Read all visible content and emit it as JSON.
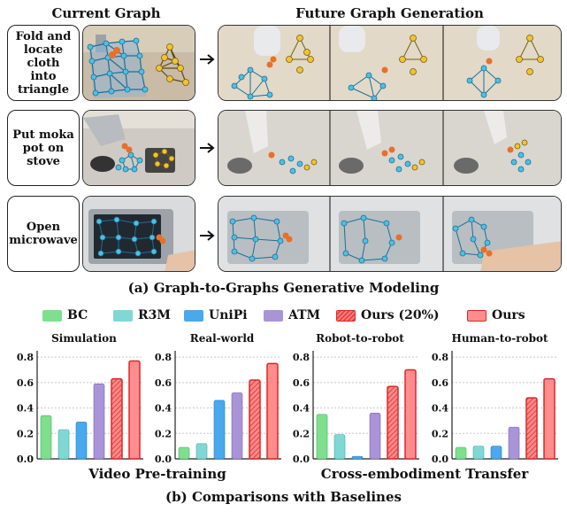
{
  "headers": {
    "current": "Current Graph",
    "future": "Future Graph Generation"
  },
  "tasks": [
    {
      "lines": [
        "Fold and",
        "locate cloth",
        "into",
        "triangle"
      ]
    },
    {
      "lines": [
        "Put moka",
        "pot on",
        "stove"
      ]
    },
    {
      "lines": [
        "Open",
        "microwave"
      ]
    }
  ],
  "caption_a": "(a) Graph-to-Graphs Generative Modeling",
  "legend": [
    {
      "label": "BC",
      "color": "#7ee08e",
      "hatched": false
    },
    {
      "label": "R3M",
      "color": "#7fd8d4",
      "hatched": false
    },
    {
      "label": "UniPi",
      "color": "#4aa8ec",
      "hatched": false
    },
    {
      "label": "ATM",
      "color": "#a994d8",
      "hatched": false
    },
    {
      "label": "Ours (20%)",
      "color": "#ff8080",
      "hatched": true
    },
    {
      "label": "Ours",
      "color": "#ff7b7b",
      "hatched": false
    }
  ],
  "group_labels": {
    "left": "Video Pre-training",
    "right": "Cross-embodiment Transfer"
  },
  "caption_b": "(b) Comparisons with Baselines",
  "chart_data": [
    {
      "type": "bar",
      "title": "Simulation",
      "categories": [
        "BC",
        "R3M",
        "UniPi",
        "ATM",
        "Ours (20%)",
        "Ours"
      ],
      "values": [
        0.34,
        0.23,
        0.29,
        0.59,
        0.63,
        0.77
      ],
      "ylim": [
        0,
        0.85
      ],
      "yticks": [
        "0.0",
        "0.2",
        "0.4",
        "0.6",
        "0.8"
      ],
      "grid": true
    },
    {
      "type": "bar",
      "title": "Real-world",
      "categories": [
        "BC",
        "R3M",
        "UniPi",
        "ATM",
        "Ours (20%)",
        "Ours"
      ],
      "values": [
        0.09,
        0.12,
        0.46,
        0.52,
        0.62,
        0.75
      ],
      "ylim": [
        0,
        0.85
      ],
      "yticks": [
        "0.0",
        "0.2",
        "0.4",
        "0.6",
        "0.8"
      ],
      "grid": true
    },
    {
      "type": "bar",
      "title": "Robot-to-robot",
      "categories": [
        "BC",
        "R3M",
        "UniPi",
        "ATM",
        "Ours (20%)",
        "Ours"
      ],
      "values": [
        0.35,
        0.19,
        0.02,
        0.36,
        0.57,
        0.7
      ],
      "ylim": [
        0,
        0.85
      ],
      "yticks": [
        "0.0",
        "0.2",
        "0.4",
        "0.6",
        "0.8"
      ],
      "grid": true
    },
    {
      "type": "bar",
      "title": "Human-to-robot",
      "categories": [
        "BC",
        "R3M",
        "UniPi",
        "ATM",
        "Ours (20%)",
        "Ours"
      ],
      "values": [
        0.09,
        0.1,
        0.1,
        0.25,
        0.48,
        0.63
      ],
      "ylim": [
        0,
        0.85
      ],
      "yticks": [
        "0.0",
        "0.2",
        "0.4",
        "0.6",
        "0.8"
      ],
      "grid": true
    }
  ]
}
